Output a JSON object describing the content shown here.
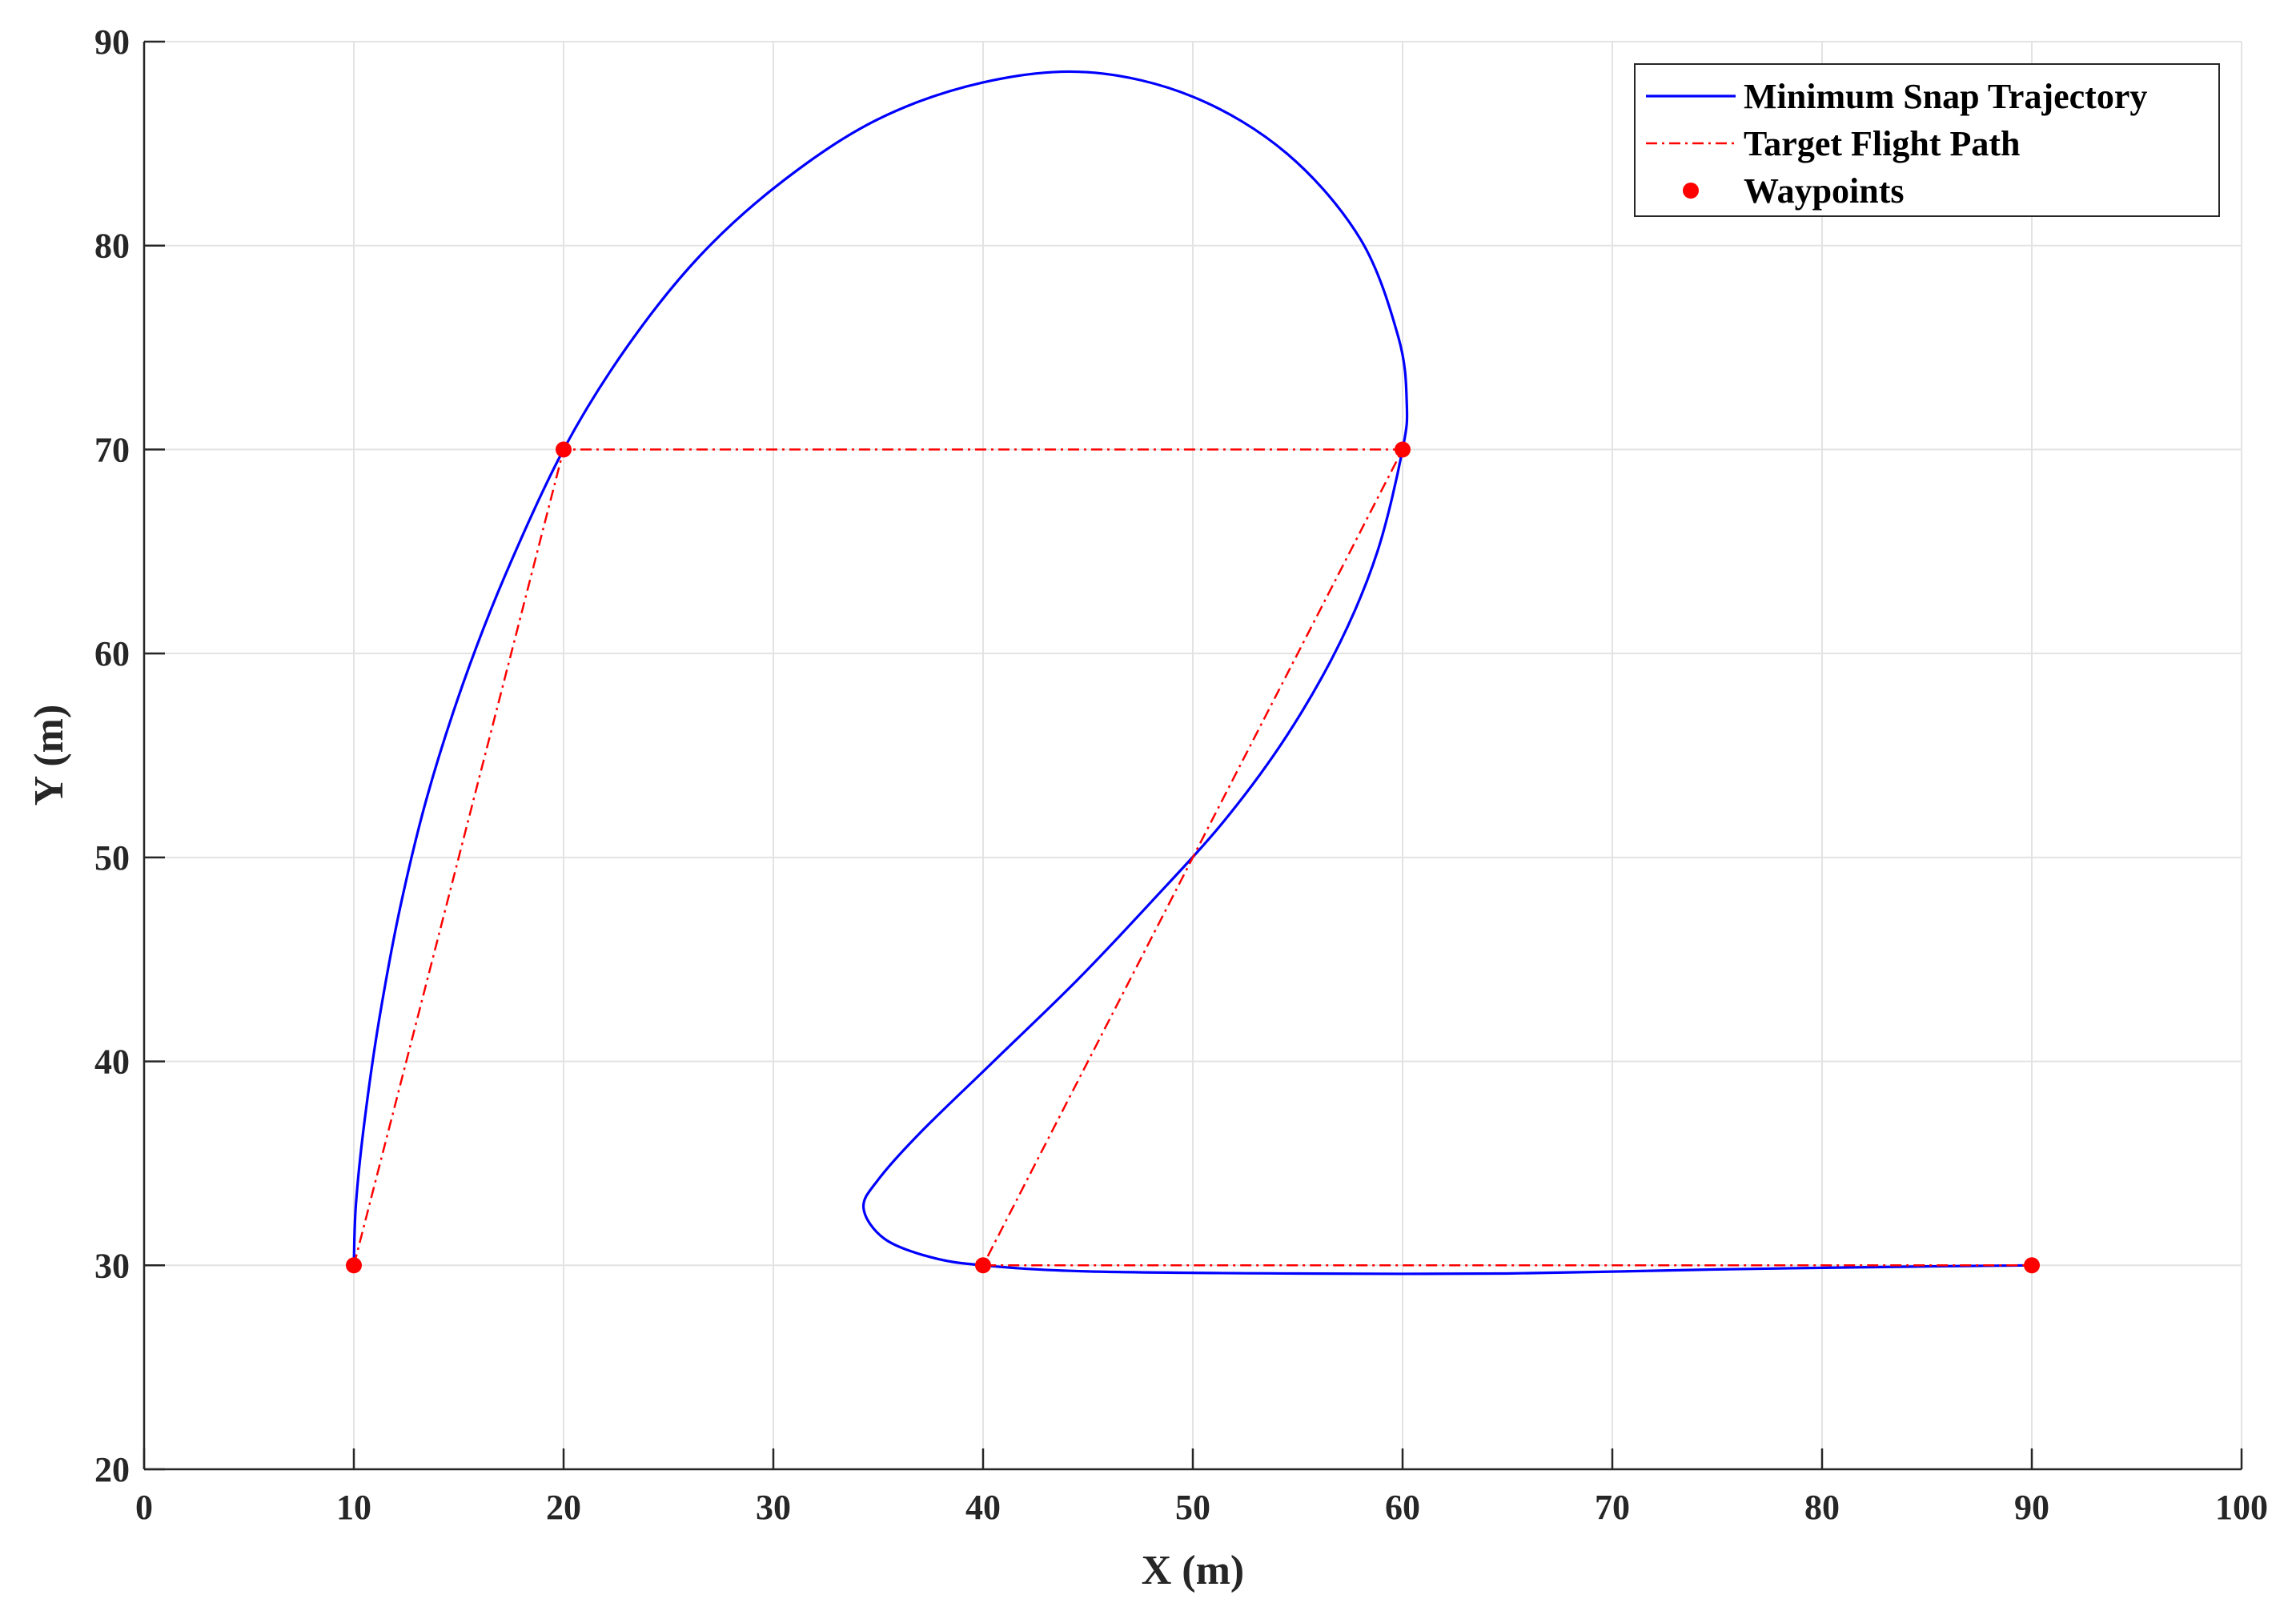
{
  "chart_data": {
    "type": "line",
    "xlabel": "X (m)",
    "ylabel": "Y (m)",
    "xlim": [
      0,
      100
    ],
    "ylim": [
      20,
      90
    ],
    "xticks": [
      0,
      10,
      20,
      30,
      40,
      50,
      60,
      70,
      80,
      90,
      100
    ],
    "yticks": [
      20,
      30,
      40,
      50,
      60,
      70,
      80,
      90
    ],
    "grid": true,
    "legend_position": "top-right",
    "series": [
      {
        "name": "Minimum Snap Trajectory",
        "style": "solid",
        "color": "#0000ff",
        "points": [
          [
            10,
            30
          ],
          [
            10.1,
            33
          ],
          [
            10.5,
            37
          ],
          [
            11.2,
            42
          ],
          [
            12.2,
            47.5
          ],
          [
            13.5,
            53
          ],
          [
            15.2,
            58.5
          ],
          [
            17.2,
            63.8
          ],
          [
            20,
            70
          ],
          [
            23,
            75
          ],
          [
            26.5,
            79.5
          ],
          [
            30.5,
            83.2
          ],
          [
            35,
            86.2
          ],
          [
            40,
            88
          ],
          [
            45,
            88.5
          ],
          [
            50,
            87.3
          ],
          [
            54.5,
            84.5
          ],
          [
            58,
            80.3
          ],
          [
            59.8,
            75.5
          ],
          [
            60.2,
            72.3
          ],
          [
            60,
            70
          ],
          [
            58.8,
            65
          ],
          [
            57,
            60.5
          ],
          [
            54.5,
            56
          ],
          [
            51.5,
            51.8
          ],
          [
            48,
            47.8
          ],
          [
            44.5,
            44
          ],
          [
            40.5,
            40
          ],
          [
            37,
            36.5
          ],
          [
            35,
            34.2
          ],
          [
            34.3,
            32.8
          ],
          [
            35.3,
            31.3
          ],
          [
            37.5,
            30.4
          ],
          [
            40,
            30
          ],
          [
            45,
            29.7
          ],
          [
            55,
            29.6
          ],
          [
            65,
            29.6
          ],
          [
            75,
            29.8
          ],
          [
            85,
            29.95
          ],
          [
            90,
            30
          ]
        ]
      },
      {
        "name": "Target Flight Path",
        "style": "dash-dot",
        "color": "#ff0000",
        "points": [
          [
            10,
            30
          ],
          [
            20,
            70
          ],
          [
            60,
            70
          ],
          [
            40,
            30
          ],
          [
            90,
            30
          ]
        ]
      },
      {
        "name": "Waypoints",
        "style": "markers",
        "color": "#ff0000",
        "points": [
          [
            10,
            30
          ],
          [
            20,
            70
          ],
          [
            60,
            70
          ],
          [
            40,
            30
          ],
          [
            90,
            30
          ]
        ]
      }
    ]
  }
}
